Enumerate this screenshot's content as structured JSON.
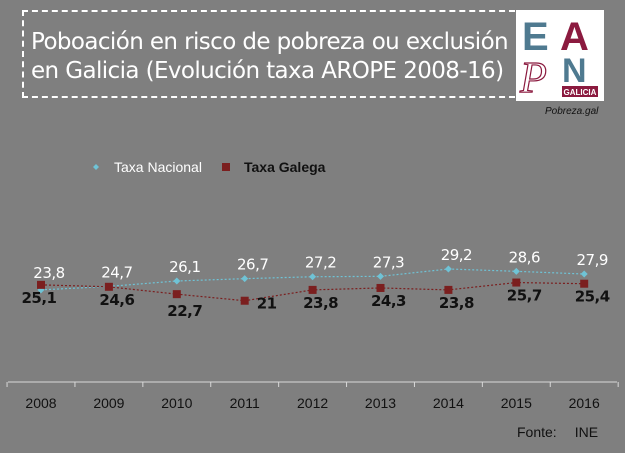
{
  "title_lines": [
    "Poboación en risco de pobreza ou exclusión",
    "en Galicia (Evolución taxa AROPE 2008-16)"
  ],
  "logo": {
    "letters": [
      "E",
      "A",
      "P",
      "N"
    ],
    "sub": "GALICIA",
    "colors": [
      "#4f7a90",
      "#8b1a3f"
    ]
  },
  "source_site": "Pobreza.gal",
  "footer": {
    "label": "Fonte:",
    "value": "INE"
  },
  "chart_data": {
    "type": "line",
    "categories": [
      "2008",
      "2009",
      "2010",
      "2011",
      "2012",
      "2013",
      "2014",
      "2015",
      "2016"
    ],
    "series": [
      {
        "name": "Taxa Nacional",
        "color": "#6fc3d6",
        "marker": "diamond",
        "values": [
          23.8,
          24.7,
          26.1,
          26.7,
          27.2,
          27.3,
          29.2,
          28.6,
          27.9
        ],
        "labels": [
          "23,8",
          "24,7",
          "26,1",
          "26,7",
          "27,2",
          "27,3",
          "29,2",
          "28,6",
          "27,9"
        ]
      },
      {
        "name": "Taxa Galega",
        "color": "#7b1f1f",
        "marker": "square",
        "values": [
          25.1,
          24.6,
          22.7,
          21,
          23.8,
          24.3,
          23.8,
          25.7,
          25.4
        ],
        "labels": [
          "25,1",
          "24,6",
          "22,7",
          "21",
          "23,8",
          "24,3",
          "23,8",
          "25,7",
          "25,4"
        ]
      }
    ],
    "ylim": [
      0,
      35
    ],
    "grid": false,
    "legend": "top"
  }
}
